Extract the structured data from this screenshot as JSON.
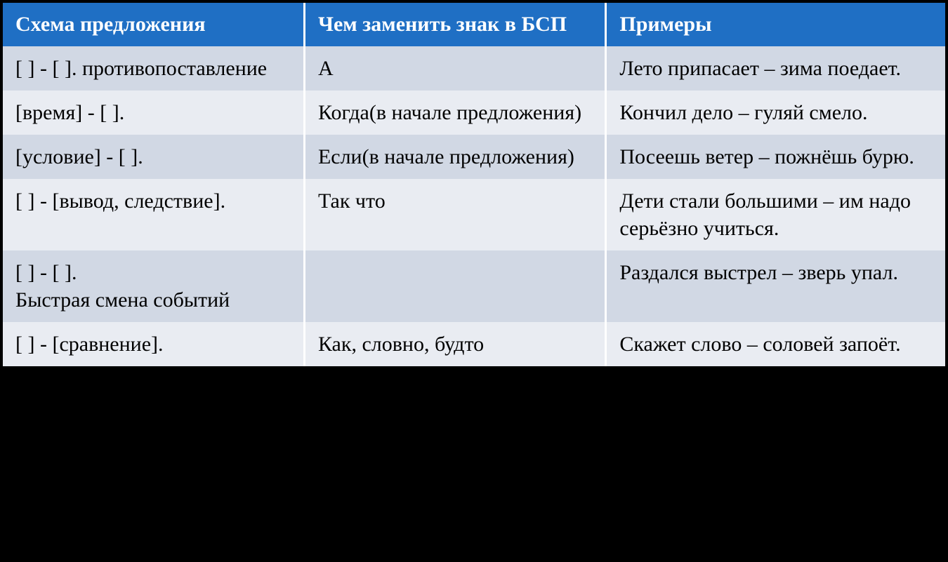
{
  "table": {
    "type": "table",
    "header_bg_color": "#1f6fc4",
    "header_text_color": "#ffffff",
    "row_odd_bg_color": "#d1d8e4",
    "row_even_bg_color": "#e9ecf2",
    "cell_text_color": "#000000",
    "border_color": "#ffffff",
    "header_fontsize": 30,
    "cell_fontsize": 30,
    "column_widths_pct": [
      32,
      32,
      36
    ],
    "columns": [
      "Схема предложения",
      "Чем заменить знак в БСП",
      "Примеры"
    ],
    "rows": [
      {
        "schema": " [    ] - [    ]. противопоставление",
        "replace": "А",
        "example": "Лето припасает – зима поедает."
      },
      {
        "schema": " [время] - [    ].",
        "replace": "Когда(в начале предложения)",
        "example": "Кончил дело – гуляй смело."
      },
      {
        "schema": " [условие] - [    ].",
        "replace": "Если(в начале предложения)",
        "example": "Посеешь ветер – пожнёшь бурю."
      },
      {
        "schema": " [    ] - [вывод, следствие].",
        "replace": "Так что",
        "example": "Дети стали большими – им надо серьёзно учиться."
      },
      {
        "schema": " [    ] - [    ].\nБыстрая смена событий",
        "replace": "",
        "example": "Раздался выстрел – зверь упал."
      },
      {
        "schema": " [    ] - [сравнение].",
        "replace": "Как, словно, будто",
        "example": "Скажет слово – соловей запоёт."
      }
    ]
  }
}
